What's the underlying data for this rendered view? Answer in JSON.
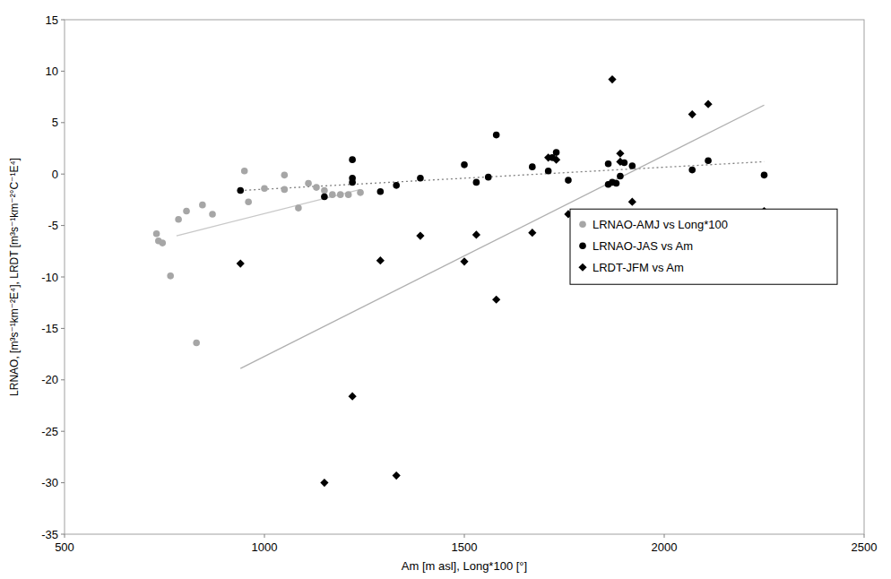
{
  "chart_data": {
    "type": "scatter",
    "x_label": "Am [m asl], Long*100 [°]",
    "y_label": "LRNAO, [m³s⁻¹km⁻²E⁴], LRDT [m³s⁻¹km⁻²°C⁻¹E⁴]",
    "xlim": [
      500,
      2500
    ],
    "xticks": [
      500,
      1000,
      1500,
      2000,
      2500
    ],
    "ylim": [
      -35,
      15
    ],
    "yticks": [
      -35,
      -30,
      -25,
      -20,
      -15,
      -10,
      -5,
      0,
      5,
      10,
      15
    ],
    "grid": false,
    "legend": "right",
    "series": [
      {
        "name": "LRNAO-AMJ vs Long*100",
        "color": "#a6a6a6",
        "marker": "circle",
        "x": [
          730,
          735,
          745,
          765,
          785,
          805,
          830,
          845,
          870,
          950,
          960,
          1000,
          1050,
          1050,
          1085,
          1110,
          1130,
          1150,
          1170,
          1190,
          1210,
          1240
        ],
        "values": [
          -5.8,
          -6.5,
          -6.7,
          -9.9,
          -4.4,
          -3.6,
          -16.4,
          -3.0,
          -3.9,
          0.3,
          -2.7,
          -1.4,
          -1.5,
          -0.1,
          -3.3,
          -0.9,
          -1.3,
          -1.6,
          -2.0,
          -2.0,
          -2.0,
          -1.8
        ]
      },
      {
        "name": "LRNAO-JAS vs Am",
        "color": "#000000",
        "marker": "circle",
        "x": [
          940,
          1150,
          1220,
          1220,
          1220,
          1290,
          1330,
          1390,
          1500,
          1530,
          1560,
          1580,
          1670,
          1710,
          1720,
          1730,
          1760,
          1860,
          1860,
          1870,
          1880,
          1890,
          1900,
          1920,
          2070,
          2110,
          2250
        ],
        "values": [
          -1.6,
          -2.2,
          -0.4,
          1.4,
          -0.8,
          -1.7,
          -1.1,
          -0.4,
          0.9,
          -0.8,
          -0.3,
          3.8,
          0.7,
          0.3,
          1.6,
          2.1,
          -0.6,
          1.0,
          -1.0,
          -0.8,
          -0.9,
          -0.2,
          1.1,
          0.8,
          0.4,
          1.3,
          -0.1
        ]
      },
      {
        "name": "LRDT-JFM vs Am",
        "color": "#000000",
        "marker": "diamond",
        "x": [
          940,
          1150,
          1220,
          1290,
          1330,
          1390,
          1500,
          1530,
          1580,
          1670,
          1710,
          1730,
          1760,
          1870,
          1890,
          1890,
          1920,
          2070,
          2110,
          2250
        ],
        "values": [
          -8.7,
          -30.0,
          -21.6,
          -8.4,
          -29.3,
          -6.0,
          -8.5,
          -5.9,
          -12.2,
          -5.7,
          1.6,
          1.4,
          -3.9,
          9.2,
          2.0,
          1.2,
          -2.7,
          5.8,
          6.8,
          -3.6
        ]
      }
    ],
    "trendlines": [
      {
        "color": "#c8c8c8",
        "line_style": "solid",
        "x": [
          780,
          1240
        ],
        "values": [
          -6.0,
          -1.5
        ]
      },
      {
        "color": "#808080",
        "line_style": "dotted",
        "x": [
          940,
          2250
        ],
        "values": [
          -1.6,
          1.2
        ]
      },
      {
        "color": "#b0b0b0",
        "line_style": "solid",
        "x": [
          940,
          2250
        ],
        "values": [
          -18.9,
          6.7
        ]
      }
    ]
  }
}
